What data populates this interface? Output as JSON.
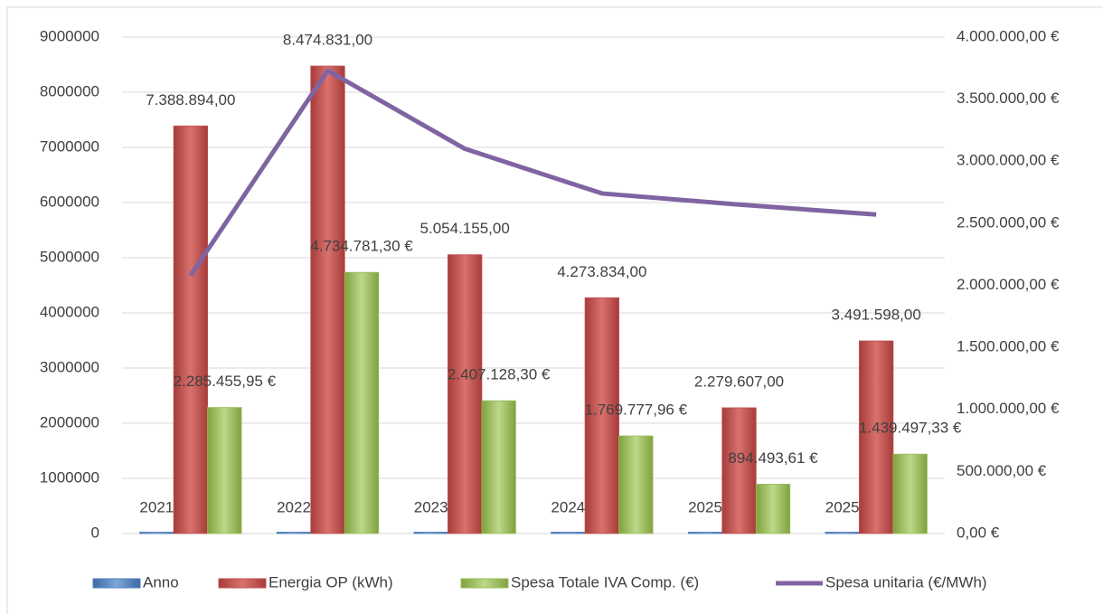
{
  "chart_data": {
    "type": "bar",
    "categories": [
      null,
      null,
      null,
      null,
      null,
      null
    ],
    "series": [
      {
        "name": "Anno",
        "color": "#4f81bd",
        "values": [
          2021,
          2022,
          2023,
          2024,
          2025,
          2025
        ]
      },
      {
        "name": "Energia  OP (kWh)",
        "color": "#c0504d",
        "values": [
          7388894,
          8474831,
          5054155,
          4273834,
          2279607,
          3491598
        ],
        "value_labels": [
          "7.388.894,00",
          "8.474.831,00",
          "5.054.155,00",
          "4.273.834,00",
          "2.279.607,00",
          "3.491.598,00"
        ]
      },
      {
        "name": "Spesa Totale IVA Comp. (€)",
        "color": "#9bbb59",
        "values": [
          2285455.95,
          4734781.3,
          2407128.3,
          1769777.96,
          894493.61,
          1439497.33
        ],
        "value_labels": [
          "2.285.455,95 €",
          "4.734.781,30 €",
          "2.407.128,30 €",
          "1.769.777,96 €",
          "894.493,61 €",
          "1.439.497,33 €"
        ]
      },
      {
        "name": "Spesa unitaria (€/MWh)",
        "color": "#8064a2",
        "type": "line",
        "axis": "y2",
        "values": [
          2080000,
          3730000,
          3100000,
          2740000,
          2650000,
          2570000
        ]
      }
    ],
    "ylim": [
      0,
      9000000
    ],
    "yticks": [
      0,
      1000000,
      2000000,
      3000000,
      4000000,
      5000000,
      6000000,
      7000000,
      8000000,
      9000000
    ],
    "y2lim": [
      0,
      4000000
    ],
    "y2ticks": [
      {
        "value": 0,
        "label": "0,00 €"
      },
      {
        "value": 500000,
        "label": "500.000,00 €"
      },
      {
        "value": 1000000,
        "label": "1.000.000,00 €"
      },
      {
        "value": 1500000,
        "label": "1.500.000,00 €"
      },
      {
        "value": 2000000,
        "label": "2.000.000,00 €"
      },
      {
        "value": 2500000,
        "label": "2.500.000,00 €"
      },
      {
        "value": 3000000,
        "label": "3.000.000,00 €"
      },
      {
        "value": 3500000,
        "label": "3.500.000,00 €"
      },
      {
        "value": 4000000,
        "label": "4.000.000,00 €"
      }
    ],
    "grid": true,
    "legend": "bottom"
  }
}
